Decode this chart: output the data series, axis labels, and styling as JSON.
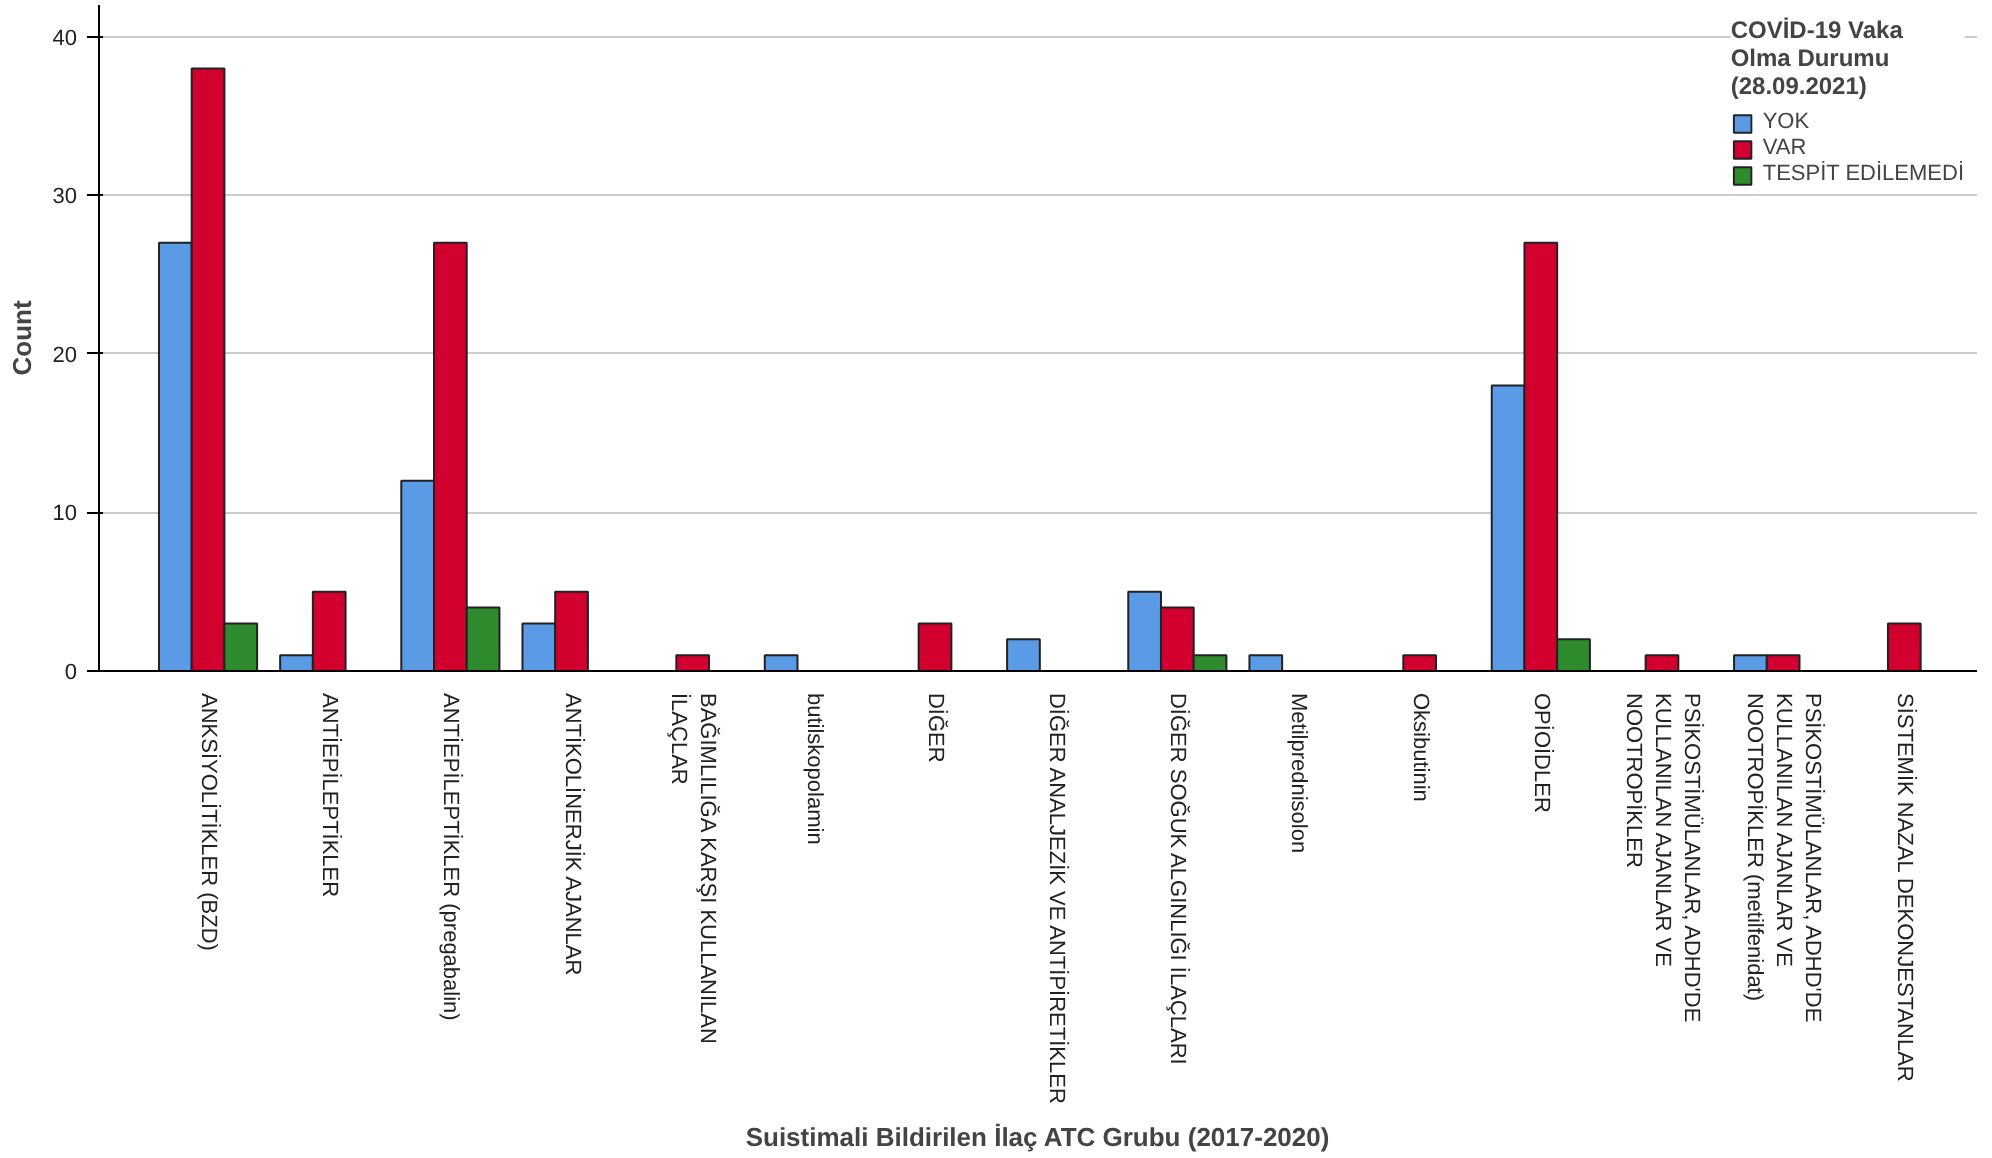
{
  "chart_data": {
    "type": "bar",
    "xlabel": "Suistimali Bildirilen İlaç ATC Grubu (2017-2020)",
    "ylabel": "Count",
    "legend_title": "COVİD-19 Vaka\nOlma Durumu\n(28.09.2021)",
    "categories": [
      "ANKSİYOLİTİKLER (BZD)",
      "ANTİEPİLEPTİKLER",
      "ANTİEPİLEPTİKLER (pregabalin)",
      "ANTİKOLİNERJİK AJANLAR",
      "BAĞIMLILIĞA KARŞI KULLANILAN\nİLAÇLAR",
      "butilskopolamin",
      "DİĞER",
      "DİĞER ANALJEZİK VE ANTİPİRETİKLER",
      "DİĞER SOĞUK ALGINLIĞI İLAÇLARI",
      "Metilprednisolon",
      "Oksibutinin",
      "OPİOİDLER",
      "PSİKOSTİMÜLANLAR, ADHD'DE\nKULLANILAN AJANLAR VE\nNOOTROPİKLER",
      "PSİKOSTİMÜLANLAR, ADHD'DE\nKULLANILAN AJANLAR VE\nNOOTROPİKLER (metilfenidat)",
      "SİSTEMİK NAZAL DEKONJESTANLAR"
    ],
    "series": [
      {
        "name": "YOK",
        "color": "#5b9be6",
        "values": [
          27,
          1,
          12,
          3,
          null,
          1,
          null,
          2,
          5,
          1,
          null,
          18,
          null,
          1,
          null
        ]
      },
      {
        "name": "VAR",
        "color": "#d2002e",
        "values": [
          38,
          5,
          27,
          5,
          1,
          null,
          3,
          null,
          4,
          null,
          1,
          27,
          1,
          1,
          3
        ]
      },
      {
        "name": "TESPİT EDİLEMEDİ",
        "color": "#2e8b2e",
        "values": [
          3,
          null,
          4,
          null,
          null,
          null,
          null,
          null,
          1,
          null,
          null,
          2,
          null,
          null,
          null
        ]
      }
    ],
    "ylim": [
      0,
      42
    ],
    "yticks": [
      0,
      10,
      20,
      30,
      40
    ],
    "grid": "y",
    "legend": "top right"
  }
}
